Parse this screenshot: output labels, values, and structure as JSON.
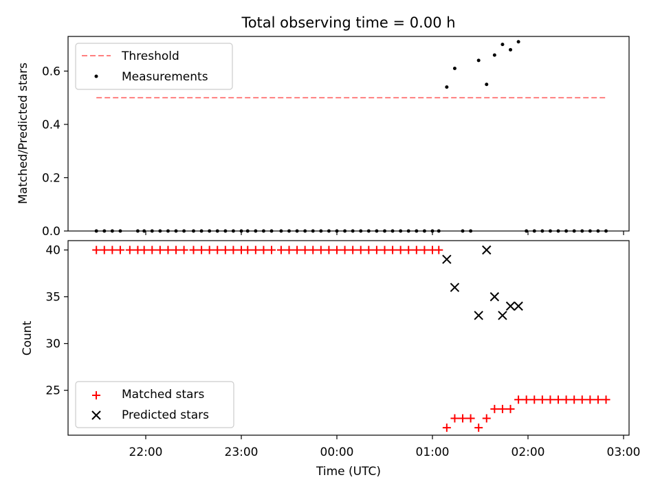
{
  "title": "Total observing time = 0.00 h",
  "colors": {
    "threshold": "#ff7f7f",
    "measurement": "#000000",
    "matched": "#ff0000",
    "predicted": "#000000"
  },
  "chart_data": [
    {
      "type": "scatter",
      "panel": "top",
      "ylabel": "Matched/Predicted stars",
      "ylim": [
        0,
        0.73
      ],
      "yticks": [
        0.0,
        0.2,
        0.4,
        0.6
      ],
      "ytick_labels": [
        "0.0",
        "0.2",
        "0.4",
        "0.6"
      ],
      "legend": {
        "placement": "top-left",
        "entries": [
          "Threshold",
          "Measurements"
        ]
      },
      "threshold": {
        "name": "Threshold",
        "y": 0.5,
        "x_range": [
          "21:29",
          "02:49"
        ]
      },
      "series": [
        {
          "name": "Measurements",
          "times": [
            "21:29",
            "21:34",
            "21:39",
            "21:44",
            "21:50",
            "21:55",
            "21:59",
            "22:04",
            "22:09",
            "22:14",
            "22:19",
            "22:24",
            "22:30",
            "22:35",
            "22:40",
            "22:45",
            "22:50",
            "22:55",
            "23:00",
            "23:04",
            "23:09",
            "23:14",
            "23:19",
            "23:25",
            "23:30",
            "23:35",
            "23:40",
            "23:45",
            "23:50",
            "23:55",
            "00:00",
            "00:05",
            "00:10",
            "00:15",
            "00:20",
            "00:25",
            "00:30",
            "00:35",
            "00:40",
            "00:45",
            "00:50",
            "00:55",
            "01:00",
            "01:04",
            "01:09",
            "01:14",
            "01:19",
            "01:24",
            "01:29",
            "01:34",
            "01:39",
            "01:44",
            "01:49",
            "01:54",
            "01:59",
            "02:04",
            "02:09",
            "02:14",
            "02:19",
            "02:24",
            "02:29",
            "02:34",
            "02:39",
            "02:44",
            "02:49"
          ],
          "values": [
            0,
            0,
            0,
            0,
            0,
            0,
            0,
            0,
            0,
            0,
            0,
            0,
            0,
            0,
            0,
            0,
            0,
            0,
            0,
            0,
            0,
            0,
            0,
            0,
            0,
            0,
            0,
            0,
            0,
            0,
            0,
            0,
            0,
            0,
            0,
            0,
            0,
            0,
            0,
            0,
            0,
            0,
            0,
            0,
            0.54,
            0.61,
            0,
            0,
            0.64,
            0.55,
            0.66,
            0.7,
            0.68,
            0.71,
            0,
            0,
            0,
            0,
            0,
            0,
            0,
            0,
            0,
            0,
            0
          ],
          "draw": [
            1,
            1,
            1,
            1,
            0,
            1,
            1,
            1,
            1,
            1,
            1,
            1,
            1,
            1,
            1,
            1,
            1,
            1,
            1,
            1,
            1,
            1,
            1,
            1,
            1,
            1,
            1,
            1,
            1,
            1,
            1,
            1,
            1,
            1,
            1,
            1,
            1,
            1,
            1,
            1,
            1,
            1,
            1,
            1,
            1,
            1,
            1,
            1,
            1,
            1,
            1,
            1,
            1,
            1,
            1,
            1,
            1,
            1,
            1,
            1,
            1,
            1,
            1,
            1,
            1
          ]
        }
      ]
    },
    {
      "type": "scatter",
      "panel": "bottom",
      "xlabel": "Time (UTC)",
      "ylabel": "Count",
      "ylim": [
        20.2,
        41.0
      ],
      "yticks": [
        25,
        30,
        35,
        40
      ],
      "ytick_labels": [
        "25",
        "30",
        "35",
        "40"
      ],
      "xticks": [
        "22:00",
        "23:00",
        "00:00",
        "01:00",
        "02:00",
        "03:00"
      ],
      "legend": {
        "placement": "bottom-left",
        "entries": [
          "Matched stars",
          "Predicted stars"
        ]
      },
      "series": [
        {
          "name": "Matched stars",
          "times": [
            "21:29",
            "21:34",
            "21:39",
            "21:44",
            "21:50",
            "21:55",
            "21:59",
            "22:04",
            "22:09",
            "22:14",
            "22:19",
            "22:24",
            "22:30",
            "22:35",
            "22:40",
            "22:45",
            "22:50",
            "22:55",
            "23:00",
            "23:04",
            "23:09",
            "23:14",
            "23:19",
            "23:25",
            "23:30",
            "23:35",
            "23:40",
            "23:45",
            "23:50",
            "23:55",
            "00:00",
            "00:05",
            "00:10",
            "00:15",
            "00:20",
            "00:25",
            "00:30",
            "00:35",
            "00:40",
            "00:45",
            "00:50",
            "00:55",
            "01:00",
            "01:04",
            "01:09",
            "01:14",
            "01:19",
            "01:24",
            "01:29",
            "01:34",
            "01:39",
            "01:44",
            "01:49",
            "01:54",
            "01:59",
            "02:04",
            "02:09",
            "02:14",
            "02:19",
            "02:24",
            "02:29",
            "02:34",
            "02:39",
            "02:44",
            "02:49"
          ],
          "values": [
            40,
            40,
            40,
            40,
            40,
            40,
            40,
            40,
            40,
            40,
            40,
            40,
            40,
            40,
            40,
            40,
            40,
            40,
            40,
            40,
            40,
            40,
            40,
            40,
            40,
            40,
            40,
            40,
            40,
            40,
            40,
            40,
            40,
            40,
            40,
            40,
            40,
            40,
            40,
            40,
            40,
            40,
            40,
            40,
            21,
            22,
            22,
            22,
            21,
            22,
            23,
            23,
            23,
            24,
            24,
            24,
            24,
            24,
            24,
            24,
            24,
            24,
            24,
            24,
            24
          ]
        },
        {
          "name": "Predicted stars",
          "times": [
            "01:09",
            "01:14",
            "01:29",
            "01:34",
            "01:39",
            "01:44",
            "01:49",
            "01:54"
          ],
          "values": [
            39,
            36,
            33,
            40,
            35,
            33,
            34,
            34
          ]
        }
      ]
    }
  ]
}
